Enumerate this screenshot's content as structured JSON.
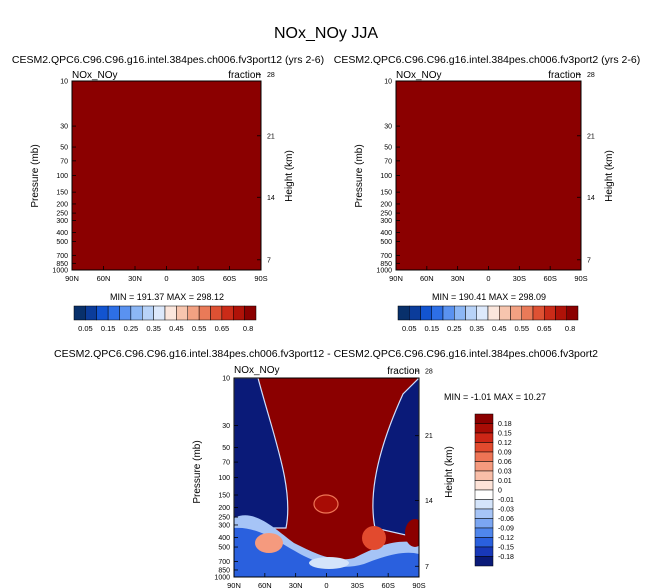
{
  "page": {
    "title": "NOx_NOy JJA"
  },
  "colors": {
    "panel_fill": "#8b0000",
    "abs_scale": [
      "#08306b",
      "#0b3c9b",
      "#1254d0",
      "#2d6fe6",
      "#5a92f0",
      "#8cb7f5",
      "#b8d3f8",
      "#dde9fb",
      "#fbe6dc",
      "#f7c5ae",
      "#f2a182",
      "#e97a58",
      "#de5133",
      "#cb2b18",
      "#b01208",
      "#8b0000"
    ],
    "diff_scale": [
      "#0a1a78",
      "#1838b8",
      "#2a60de",
      "#4f86ec",
      "#7ba6f2",
      "#a6c4f6",
      "#d4e4fa",
      "#ffffff",
      "#fde3d8",
      "#f9bea8",
      "#f59a7e",
      "#ee7455",
      "#e24a2e",
      "#cd2616",
      "#a80c05",
      "#8b0000"
    ]
  },
  "chart_data": [
    {
      "type": "heatmap",
      "title": "CESM2.QPC6.C96.C96.g16.intel.384pes.ch006.fv3port12 (yrs 2-6)",
      "left_label": "NOx_NOy",
      "right_label": "fraction",
      "ylabel": "Pressure (mb)",
      "ylabel_right": "Height (km)",
      "x_ticks": [
        "90N",
        "60N",
        "30N",
        "0",
        "30S",
        "60S",
        "90S"
      ],
      "y_ticks": [
        "10",
        "30",
        "50",
        "70",
        "100",
        "150",
        "200",
        "250",
        "300",
        "400",
        "500",
        "700",
        "850",
        "1000"
      ],
      "height_ticks": [
        "28",
        "21",
        "14",
        "7"
      ],
      "min_max_text": "MIN = 191.37  MAX = 298.12",
      "colorbar_ticks": [
        "0.05",
        "0.15",
        "0.25",
        "0.35",
        "0.45",
        "0.55",
        "0.65",
        "0.8"
      ]
    },
    {
      "type": "heatmap",
      "title": "CESM2.QPC6.C96.C96.g16.intel.384pes.ch006.fv3port2 (yrs 2-6)",
      "left_label": "NOx_NOy",
      "right_label": "fraction",
      "ylabel": "Pressure (mb)",
      "ylabel_right": "Height (km)",
      "x_ticks": [
        "90N",
        "60N",
        "30N",
        "0",
        "30S",
        "60S",
        "90S"
      ],
      "y_ticks": [
        "10",
        "30",
        "50",
        "70",
        "100",
        "150",
        "200",
        "250",
        "300",
        "400",
        "500",
        "700",
        "850",
        "1000"
      ],
      "height_ticks": [
        "28",
        "21",
        "14",
        "7"
      ],
      "min_max_text": "MIN = 190.41  MAX = 298.09",
      "colorbar_ticks": [
        "0.05",
        "0.15",
        "0.25",
        "0.35",
        "0.45",
        "0.55",
        "0.65",
        "0.8"
      ]
    },
    {
      "type": "heatmap",
      "title": "CESM2.QPC6.C96.C96.g16.intel.384pes.ch006.fv3port12 - CESM2.QPC6.C96.C96.g16.intel.384pes.ch006.fv3port2",
      "left_label": "NOx_NOy",
      "right_label": "fraction",
      "ylabel": "Pressure (mb)",
      "ylabel_right": "Height (km)",
      "x_ticks": [
        "90N",
        "60N",
        "30N",
        "0",
        "30S",
        "60S",
        "90S"
      ],
      "y_ticks": [
        "10",
        "30",
        "50",
        "70",
        "100",
        "150",
        "200",
        "250",
        "300",
        "400",
        "500",
        "700",
        "850",
        "1000"
      ],
      "height_ticks": [
        "28",
        "21",
        "14",
        "7"
      ],
      "min_max_text": "MIN = -1.01  MAX = 10.27",
      "colorbar_ticks": [
        "0.18",
        "0.15",
        "0.12",
        "0.09",
        "0.06",
        "0.03",
        "0.01",
        "0",
        "-0.01",
        "-0.03",
        "-0.06",
        "-0.09",
        "-0.12",
        "-0.15",
        "-0.18"
      ]
    }
  ]
}
